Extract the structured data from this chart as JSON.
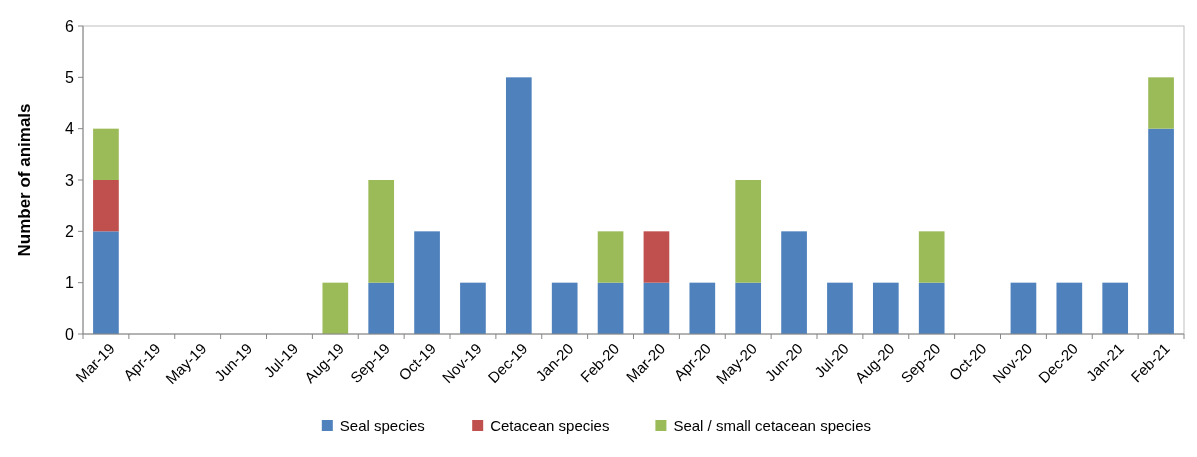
{
  "chart_data": {
    "type": "bar",
    "stacked": true,
    "ylabel": "Number of animals",
    "categories": [
      "Mar-19",
      "Apr-19",
      "May-19",
      "Jun-19",
      "Jul-19",
      "Aug-19",
      "Sep-19",
      "Oct-19",
      "Nov-19",
      "Dec-19",
      "Jan-20",
      "Feb-20",
      "Mar-20",
      "Apr-20",
      "May-20",
      "Jun-20",
      "Jul-20",
      "Aug-20",
      "Sep-20",
      "Oct-20",
      "Nov-20",
      "Dec-20",
      "Jan-21",
      "Feb-21"
    ],
    "series": [
      {
        "name": "Seal species",
        "color": "#4f81bd",
        "values": [
          2,
          0,
          0,
          0,
          0,
          0,
          1,
          2,
          1,
          5,
          1,
          1,
          1,
          1,
          1,
          2,
          1,
          1,
          1,
          0,
          1,
          1,
          1,
          4
        ]
      },
      {
        "name": "Cetacean species",
        "color": "#c0504d",
        "values": [
          1,
          0,
          0,
          0,
          0,
          0,
          0,
          0,
          0,
          0,
          0,
          0,
          1,
          0,
          0,
          0,
          0,
          0,
          0,
          0,
          0,
          0,
          0,
          0
        ]
      },
      {
        "name": "Seal / small cetacean species",
        "color": "#9bbb59",
        "values": [
          1,
          0,
          0,
          0,
          0,
          1,
          2,
          0,
          0,
          0,
          0,
          1,
          0,
          0,
          2,
          0,
          0,
          0,
          1,
          0,
          0,
          0,
          0,
          1
        ]
      }
    ],
    "ylim": [
      0,
      6
    ],
    "yticks": [
      0,
      1,
      2,
      3,
      4,
      5,
      6
    ],
    "grid": false,
    "legend": "bottom"
  }
}
